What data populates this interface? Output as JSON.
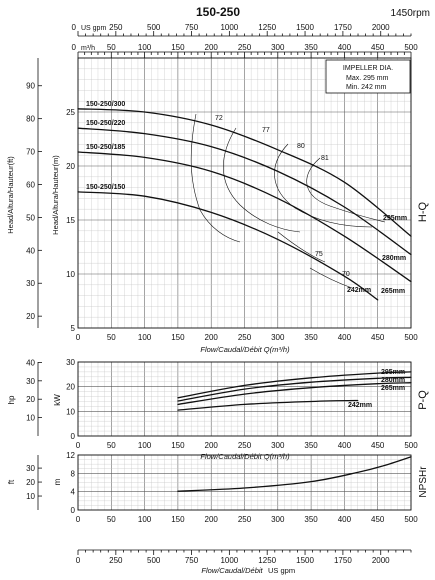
{
  "title": "150-250",
  "speed": "1450rpm",
  "chart_data": [
    {
      "type": "line",
      "name_label": "H-Q",
      "top_axis_unit": "US gpm",
      "top_axis_ticks": [
        0,
        250,
        500,
        750,
        1000,
        1250,
        1500,
        1750,
        2000
      ],
      "flow_axis_unit_top": "m³/h",
      "flow_ticks": [
        0,
        50,
        100,
        150,
        200,
        250,
        300,
        350,
        400,
        450,
        500
      ],
      "xlim": [
        0,
        500
      ],
      "ylabel": "Head/Altura/Hauteur(m)",
      "ylim": [
        5,
        30
      ],
      "y_ticks": [
        5,
        10,
        15,
        20,
        25
      ],
      "ylabel_ft": "Head/Altura/Hauteur(ft)",
      "ft_ticks": [
        20,
        30,
        40,
        50,
        60,
        70,
        80,
        90
      ],
      "xlabel": "Flow/Caudal/Débit Q(m³/h)",
      "impeller_box": {
        "title": "IMPELLER DIA.",
        "max": "Max.  295 mm",
        "min": "Min.  242 mm"
      },
      "series": [
        {
          "name": "150-250/300",
          "end_label": "295mm",
          "x": [
            0,
            100,
            200,
            300,
            400,
            500
          ],
          "y": [
            25.3,
            25,
            23.8,
            21.5,
            18.5,
            13.5
          ]
        },
        {
          "name": "150-250/220",
          "end_label": "280mm",
          "x": [
            0,
            100,
            200,
            300,
            400,
            500
          ],
          "y": [
            23.5,
            23,
            21.8,
            19.5,
            16.2,
            11.8
          ]
        },
        {
          "name": "150-250/185",
          "end_label": "265mm",
          "x": [
            0,
            100,
            200,
            300,
            400,
            500
          ],
          "y": [
            21.3,
            20.8,
            19.5,
            17,
            13.5,
            9.3
          ]
        },
        {
          "name": "150-250/150",
          "end_label": "242mm",
          "x": [
            0,
            100,
            200,
            300,
            400,
            450
          ],
          "y": [
            17.6,
            17.2,
            15.7,
            13.2,
            9.8,
            7.6
          ]
        }
      ],
      "efficiency_labels": [
        "72",
        "77",
        "80",
        "81",
        "75",
        "70"
      ]
    },
    {
      "type": "line",
      "name_label": "P-Q",
      "ylabel": "kW",
      "ylabel_hp": "hp",
      "ylim": [
        0,
        30
      ],
      "y_ticks": [
        0,
        10,
        20,
        30
      ],
      "hp_ticks": [
        10,
        20,
        30,
        40
      ],
      "xlim": [
        0,
        500
      ],
      "flow_ticks": [
        0,
        50,
        100,
        150,
        200,
        250,
        300,
        350,
        400,
        450,
        500
      ],
      "xlabel": "Flow/Caudal/Débit Q(m³/h)",
      "series": [
        {
          "name": "295mm",
          "x": [
            150,
            250,
            350,
            450,
            500
          ],
          "y": [
            15.5,
            20.5,
            23.6,
            25.5,
            26
          ]
        },
        {
          "name": "280mm",
          "x": [
            150,
            250,
            350,
            450,
            500
          ],
          "y": [
            14.2,
            19,
            21.8,
            23.4,
            23.8
          ]
        },
        {
          "name": "265mm",
          "x": [
            150,
            250,
            350,
            450,
            500
          ],
          "y": [
            12.8,
            17,
            19.6,
            21.2,
            21.6
          ]
        },
        {
          "name": "242mm",
          "x": [
            150,
            250,
            350,
            420
          ],
          "y": [
            10.5,
            12.8,
            14,
            14.4
          ]
        }
      ]
    },
    {
      "type": "line",
      "name_label": "NPSHr",
      "ylabel": "m",
      "ylabel_ft": "ft",
      "ylim": [
        0,
        12
      ],
      "y_ticks": [
        0,
        4,
        8,
        12
      ],
      "ft_ticks": [
        10,
        20,
        30
      ],
      "xlim": [
        0,
        500
      ],
      "bottom_axis_unit": "US gpm",
      "bottom_axis_ticks": [
        0,
        250,
        500,
        750,
        1000,
        1250,
        1500,
        1750,
        2000
      ],
      "xlabel": "Flow/Caudal/Débit",
      "series": [
        {
          "name": "NPSHr",
          "x": [
            150,
            250,
            350,
            420,
            460,
            500
          ],
          "y": [
            4.1,
            4.8,
            6.2,
            8.2,
            9.7,
            11.6
          ]
        }
      ]
    }
  ]
}
